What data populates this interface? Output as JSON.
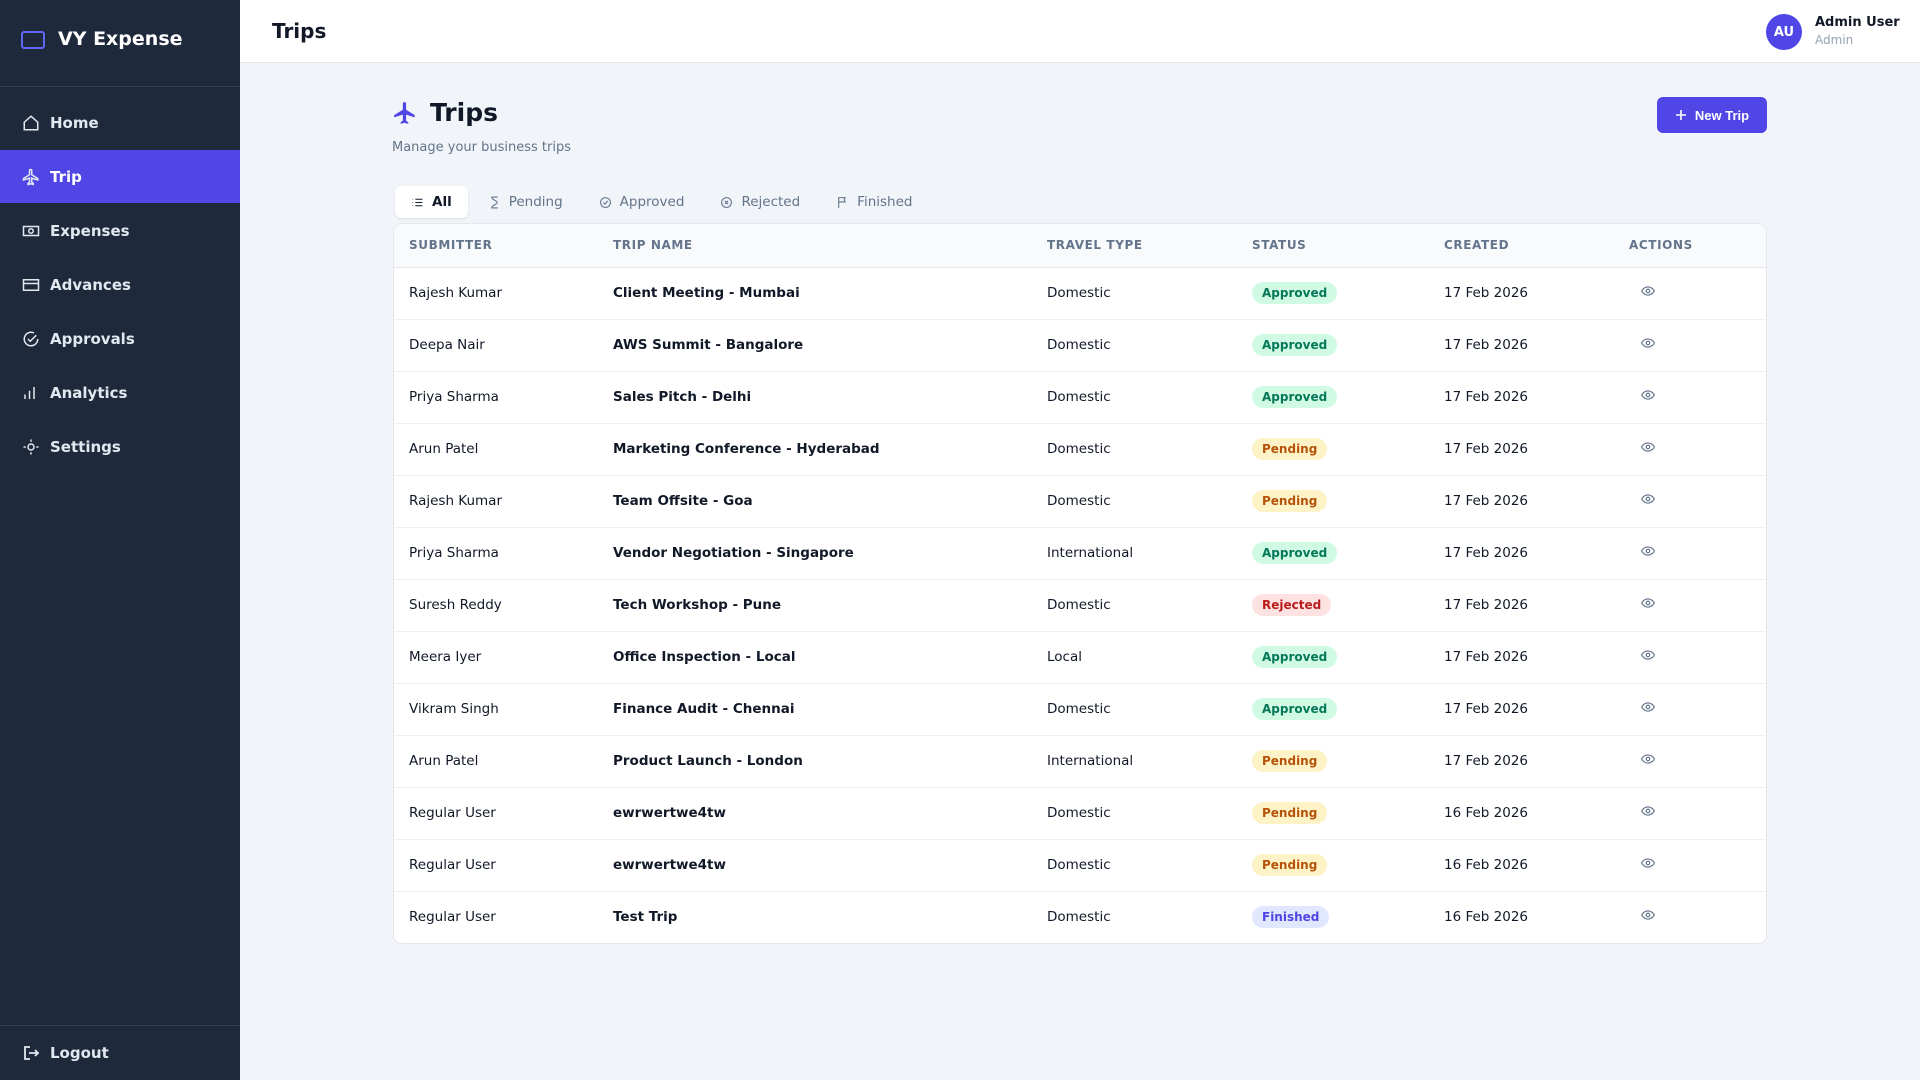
{
  "app": {
    "brand": "VY Expense",
    "nav": [
      "Home",
      "Trip",
      "Expenses",
      "Advances",
      "Approvals",
      "Analytics",
      "Settings"
    ],
    "active_nav": 1,
    "logout": "Logout"
  },
  "header": {
    "title": "Trips",
    "user": {
      "initials": "AU",
      "name": "Admin User",
      "role": "Admin"
    }
  },
  "page": {
    "title": "Trips",
    "subtitle": "Manage your business trips",
    "new_button": "New Trip",
    "tabs": [
      "All",
      "Pending",
      "Approved",
      "Rejected",
      "Finished"
    ],
    "active_tab": 0
  },
  "table": {
    "columns": [
      "SUBMITTER",
      "TRIP NAME",
      "TRAVEL TYPE",
      "STATUS",
      "CREATED",
      "ACTIONS"
    ],
    "rows": [
      [
        "Rajesh Kumar",
        "Client Meeting - Mumbai",
        "Domestic",
        "Approved",
        "17 Feb 2026"
      ],
      [
        "Deepa Nair",
        "AWS Summit - Bangalore",
        "Domestic",
        "Approved",
        "17 Feb 2026"
      ],
      [
        "Priya Sharma",
        "Sales Pitch - Delhi",
        "Domestic",
        "Approved",
        "17 Feb 2026"
      ],
      [
        "Arun Patel",
        "Marketing Conference - Hyderabad",
        "Domestic",
        "Pending",
        "17 Feb 2026"
      ],
      [
        "Rajesh Kumar",
        "Team Offsite - Goa",
        "Domestic",
        "Pending",
        "17 Feb 2026"
      ],
      [
        "Priya Sharma",
        "Vendor Negotiation - Singapore",
        "International",
        "Approved",
        "17 Feb 2026"
      ],
      [
        "Suresh Reddy",
        "Tech Workshop - Pune",
        "Domestic",
        "Rejected",
        "17 Feb 2026"
      ],
      [
        "Meera Iyer",
        "Office Inspection - Local",
        "Local",
        "Approved",
        "17 Feb 2026"
      ],
      [
        "Vikram Singh",
        "Finance Audit - Chennai",
        "Domestic",
        "Approved",
        "17 Feb 2026"
      ],
      [
        "Arun Patel",
        "Product Launch - London",
        "International",
        "Pending",
        "17 Feb 2026"
      ],
      [
        "Regular User",
        "ewrwertwe4tw",
        "Domestic",
        "Pending",
        "16 Feb 2026"
      ],
      [
        "Regular User",
        "ewrwertwe4tw",
        "Domestic",
        "Pending",
        "16 Feb 2026"
      ],
      [
        "Regular User",
        "Test Trip",
        "Domestic",
        "Finished",
        "16 Feb 2026"
      ]
    ]
  }
}
